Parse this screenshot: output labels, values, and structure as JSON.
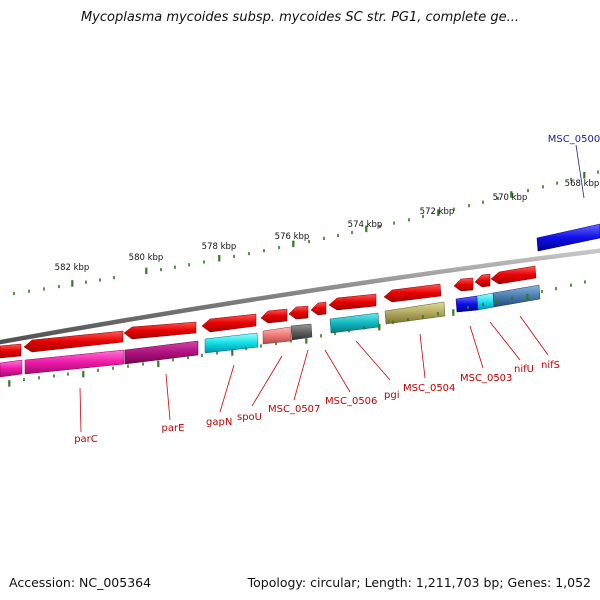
{
  "map": {
    "title": "Mycoplasma mycoides subsp. mycoides SC str. PG1, complete ge...",
    "accession": "Accession: NC_005364",
    "summary": "Topology: circular; Length: 1,211,703 bp; Genes: 1,052"
  },
  "scale_labels": [
    "582 kbp",
    "580 kbp",
    "578 kbp",
    "576 kbp",
    "574 kbp",
    "572 kbp",
    "570 kbp",
    "568 kbp"
  ],
  "gene_labels": [
    "MSC_0500",
    "parC",
    "parE",
    "gapN",
    "spoU",
    "MSC_0507",
    "MSC_0506",
    "pgi",
    "MSC_0504",
    "MSC_0503",
    "nifU",
    "nifS"
  ],
  "colors": {
    "cds": "#e60000",
    "backbone": "#808080",
    "tick": "#2e7d1e",
    "gene_label": "#c00000",
    "highlight_label": "#1a1aa0"
  }
}
